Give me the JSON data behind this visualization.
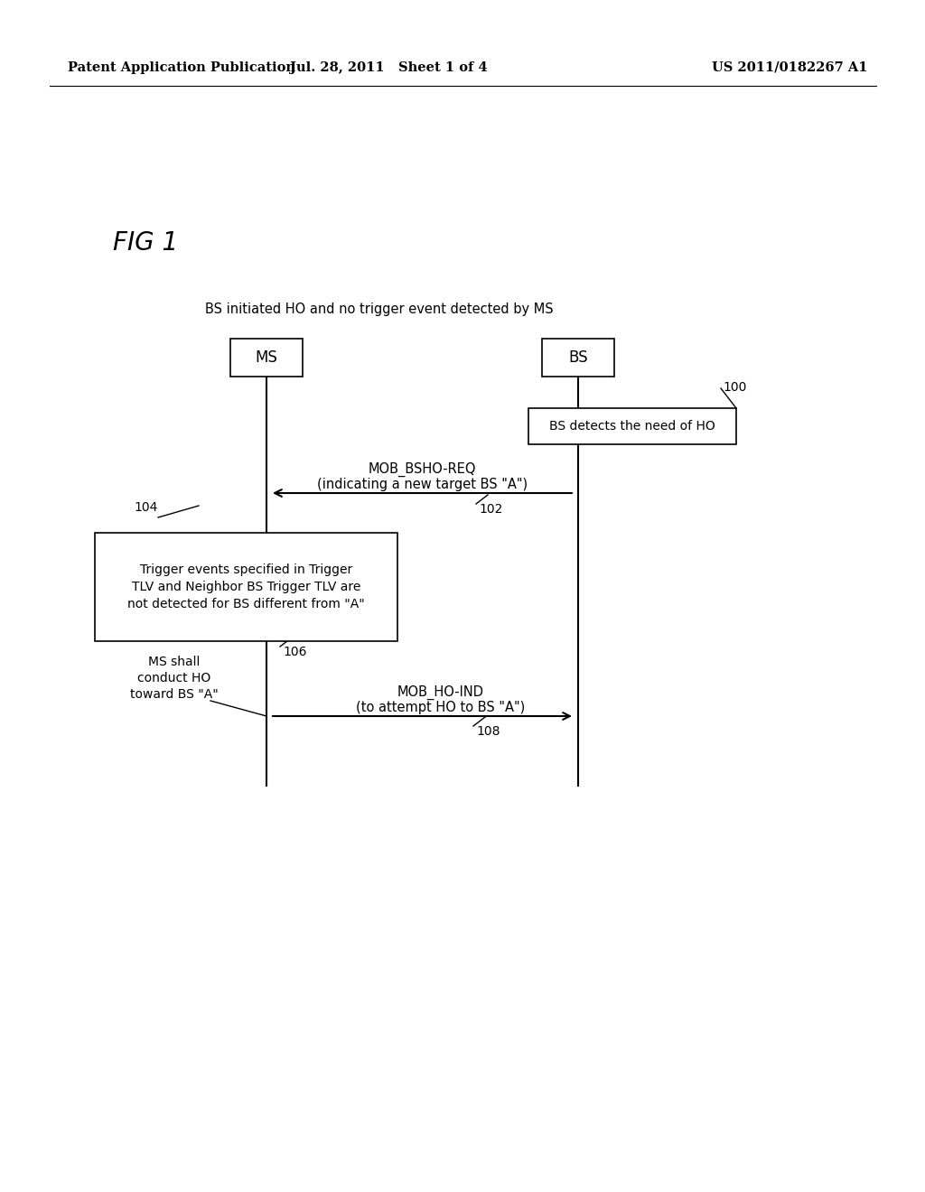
{
  "bg_color": "#ffffff",
  "header_left": "Patent Application Publication",
  "header_mid": "Jul. 28, 2011   Sheet 1 of 4",
  "header_right": "US 2011/0182267 A1",
  "fig_label": "FIG 1",
  "subtitle": "BS initiated HO and no trigger event detected by MS",
  "ms_label": "MS",
  "bs_label": "BS",
  "ref_100": "100",
  "box_bs_detects": "BS detects the need of HO",
  "arrow1_label_line1": "MOB_BSHO-REQ",
  "arrow1_label_line2": "(indicating a new target BS \"A\")",
  "ref_102": "102",
  "ref_104": "104",
  "box_trigger_line1": "Trigger events specified in Trigger",
  "box_trigger_line2": "TLV and Neighbor BS Trigger TLV are",
  "box_trigger_line3": "not detected for BS different from \"A\"",
  "ref_106": "106",
  "note_ms_line1": "MS shall",
  "note_ms_line2": "conduct HO",
  "note_ms_line3": "toward BS \"A\"",
  "arrow2_label_line1": "MOB_HO-IND",
  "arrow2_label_line2": "(to attempt HO to BS \"A\")",
  "ref_108": "108"
}
